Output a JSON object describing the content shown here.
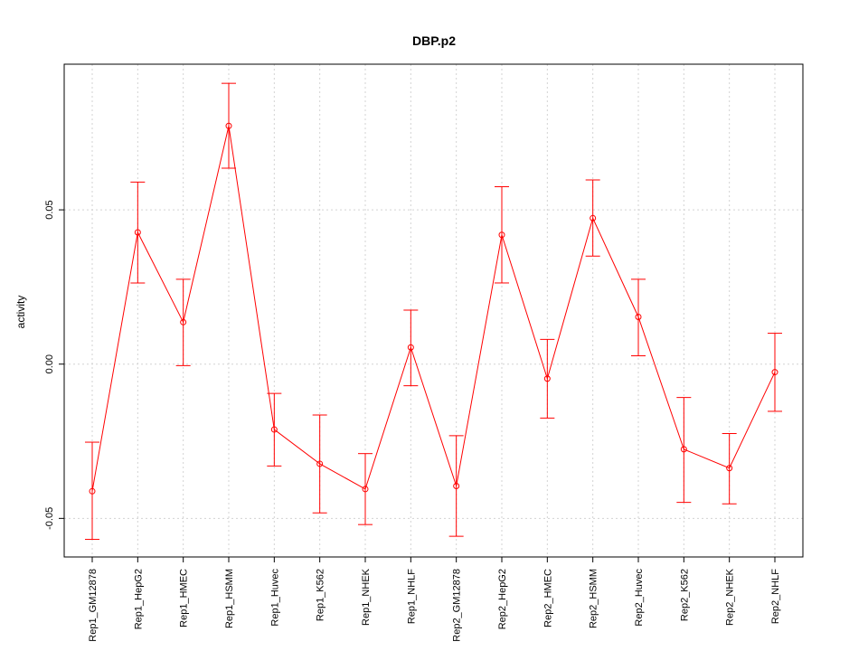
{
  "chart_data": {
    "type": "line",
    "title": "DBP.p2",
    "xlabel": "",
    "ylabel": "activity",
    "categories": [
      "Rep1_GM12878",
      "Rep1_HepG2",
      "Rep1_HMEC",
      "Rep1_HSMM",
      "Rep1_Huvec",
      "Rep1_K562",
      "Rep1_NHEK",
      "Rep1_NHLF",
      "Rep2_GM12878",
      "Rep2_HepG2",
      "Rep2_HMEC",
      "Rep2_HSMM",
      "Rep2_Huvec",
      "Rep2_K562",
      "Rep2_NHEK",
      "Rep2_NHLF"
    ],
    "values": [
      -0.0412,
      0.0427,
      0.0136,
      0.0772,
      -0.0212,
      -0.0323,
      -0.0405,
      0.0054,
      -0.0395,
      0.0419,
      -0.0047,
      0.0473,
      0.0153,
      -0.0276,
      -0.0337,
      -0.0026
    ],
    "error_upper": [
      -0.0253,
      0.059,
      0.0275,
      0.091,
      -0.0095,
      -0.0165,
      -0.029,
      0.0175,
      -0.0232,
      0.0575,
      0.008,
      0.0597,
      0.0275,
      -0.0108,
      -0.0225,
      0.01
    ],
    "error_lower": [
      -0.0568,
      0.0263,
      -0.0005,
      0.0635,
      -0.033,
      -0.0482,
      -0.052,
      -0.007,
      -0.0558,
      0.0263,
      -0.0175,
      0.035,
      0.0027,
      -0.0448,
      -0.0453,
      -0.0153
    ],
    "yticks": [
      -0.05,
      0.0,
      0.05
    ],
    "ytick_labels": [
      "-0.05",
      "0.00",
      "0.05"
    ],
    "ylim": [
      -0.0625,
      0.0972
    ],
    "grid": true,
    "colors": {
      "series": "#ff0000",
      "grid": "#d3d3d3",
      "axis": "#000000"
    }
  }
}
